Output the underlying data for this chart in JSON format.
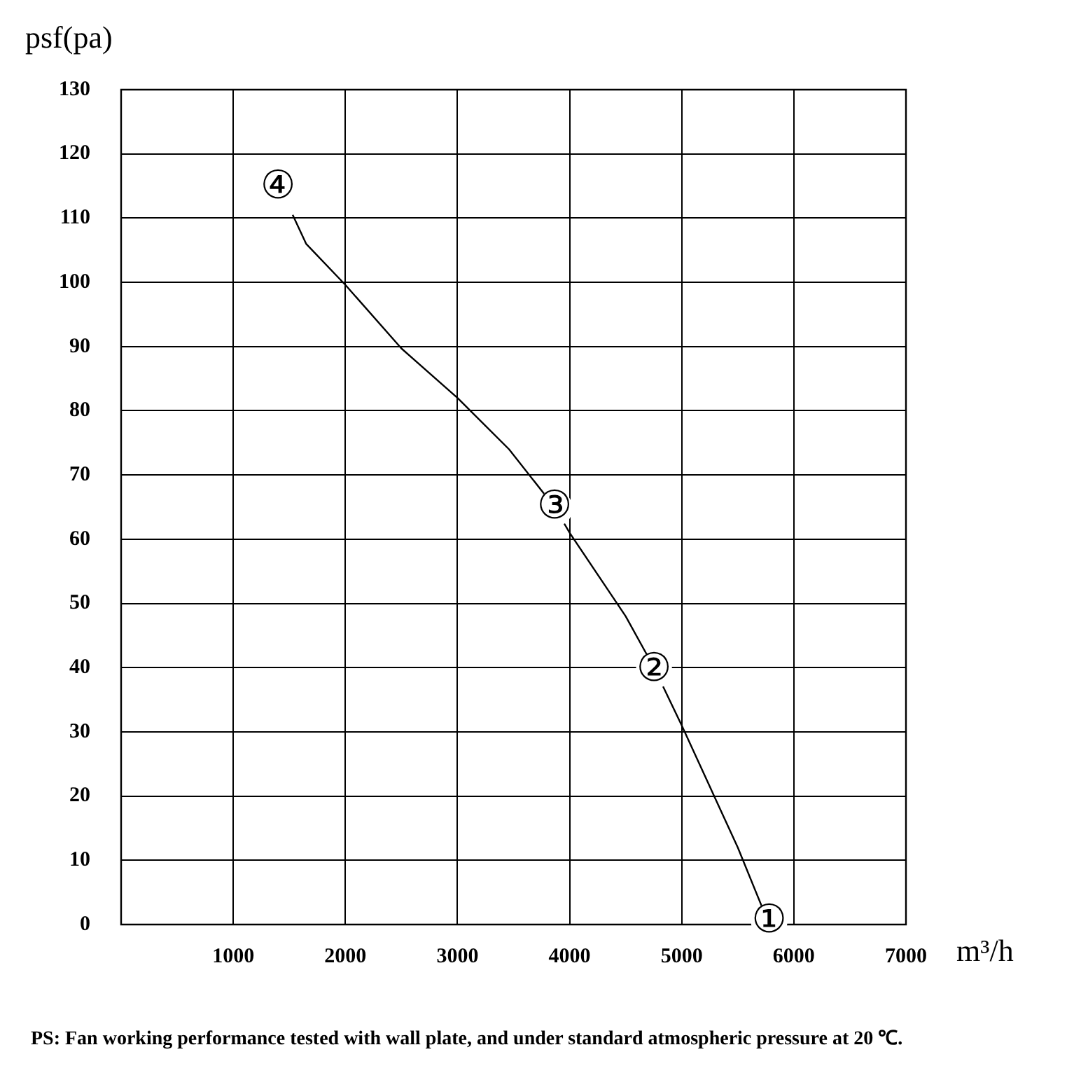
{
  "chart_data": {
    "type": "line",
    "xlabel": "m³/h",
    "ylabel": "psf(pa)",
    "x": [
      1530,
      1650,
      2000,
      2500,
      3000,
      3460,
      3866,
      4000,
      4500,
      4753,
      5000,
      5500,
      5780
    ],
    "series": [
      {
        "color": "#000000",
        "values": [
          110.5,
          106,
          99.6,
          89.7,
          82,
          74,
          65,
          61,
          48,
          40,
          31,
          12,
          0
        ]
      }
    ],
    "xlim": [
      0,
      7000
    ],
    "xticks": [
      {
        "value": 0,
        "label": null
      },
      1000,
      2000,
      3000,
      4000,
      5000,
      6000,
      7000
    ],
    "ylim": [
      0,
      130
    ],
    "yticks": [
      0,
      10,
      20,
      30,
      40,
      50,
      60,
      70,
      80,
      90,
      100,
      110,
      120,
      130
    ],
    "grid": true,
    "legend": false,
    "marker": "none",
    "line_style": "solid",
    "annotations": [
      {
        "text": "①",
        "x": 5780,
        "y": 0.4
      },
      {
        "text": "②",
        "x": 4753,
        "y": 39.5
      },
      {
        "text": "③",
        "x": 3866,
        "y": 64.8
      },
      {
        "text": "④",
        "x": 1400,
        "y": 114.7
      },
      "PS: Fan working performance tested with wall plate, and under standard atmospheric pressure at 20 ℃."
    ]
  }
}
